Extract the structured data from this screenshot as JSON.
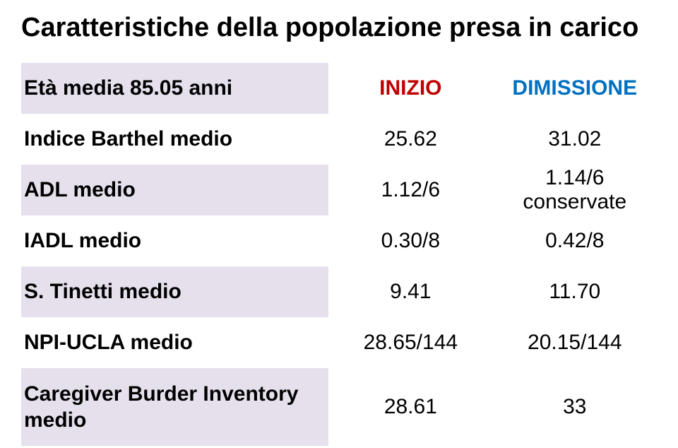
{
  "title": "Caratteristiche della popolazione presa in carico",
  "header": {
    "label": "Età media 85.05 anni",
    "col1": "INIZIO",
    "col2": "DIMISSIONE"
  },
  "rows": [
    {
      "label": "Indice Barthel medio",
      "c1": "25.62",
      "c2": "31.02"
    },
    {
      "label": "ADL medio",
      "c1": "1.12/6",
      "c2": "1.14/6 conservate"
    },
    {
      "label": "IADL medio",
      "c1": "0.30/8",
      "c2": "0.42/8"
    },
    {
      "label": "S. Tinetti medio",
      "c1": "9.41",
      "c2": "11.70"
    },
    {
      "label": "NPI-UCLA medio",
      "c1": "28.65/144",
      "c2": "20.15/144"
    },
    {
      "label": "Caregiver Burder Inventory medio",
      "c1": "28.61",
      "c2": "33"
    }
  ],
  "colors": {
    "header_bg": "#e6e0ec",
    "inizio": "#c00000",
    "dimissione": "#0070c0",
    "text": "#000000",
    "bg": "#ffffff"
  },
  "font_sizes": {
    "title": 38,
    "body": 30
  }
}
